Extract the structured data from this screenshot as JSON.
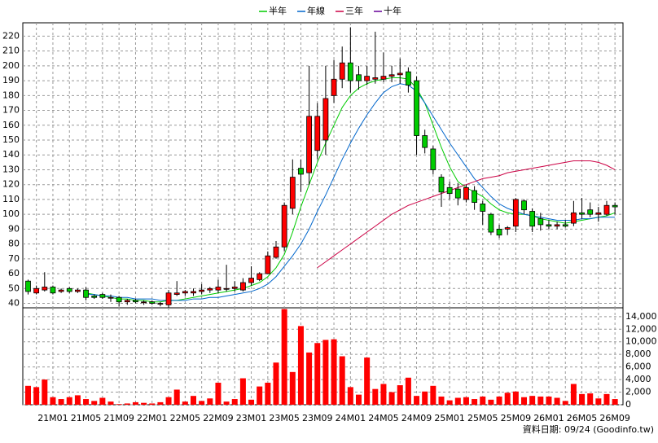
{
  "chart_data": {
    "type": "candlestick",
    "categories": [
      null,
      null,
      null,
      "21M01",
      null,
      null,
      null,
      "21M05",
      null,
      null,
      null,
      "21M09",
      null,
      null,
      null,
      "22M01",
      null,
      null,
      null,
      "22M05",
      null,
      null,
      null,
      "22M09",
      null,
      null,
      null,
      "23M01",
      null,
      null,
      null,
      "23M05",
      null,
      null,
      null,
      "23M09",
      null,
      null,
      null,
      "24M01",
      null,
      null,
      null,
      "24M05",
      null,
      null,
      null,
      "24M09",
      null,
      null,
      null,
      "25M01",
      null,
      null,
      null,
      "25M05",
      null,
      null,
      null,
      "25M09",
      null,
      null,
      null,
      "26M01",
      null,
      null,
      null,
      "26M05",
      null,
      null,
      null,
      "26M09"
    ],
    "open": [
      55,
      47,
      49,
      51,
      48,
      50,
      48,
      49,
      45,
      46,
      44,
      44,
      41,
      42,
      41,
      41,
      40,
      39,
      46,
      47,
      47,
      48,
      49,
      49,
      50,
      50,
      49,
      54,
      56,
      60,
      71,
      78,
      104,
      131,
      128,
      143,
      150,
      180,
      191,
      202,
      194,
      190,
      191,
      191,
      193,
      194,
      196,
      190,
      153,
      144,
      125,
      118,
      117,
      110,
      116,
      107,
      100,
      90,
      90,
      92,
      109,
      102,
      97,
      93,
      92,
      93,
      94,
      101,
      103,
      100,
      100,
      106
    ],
    "high": [
      56,
      52,
      61,
      52,
      50,
      51,
      50,
      51,
      46,
      47,
      46,
      45,
      43,
      43,
      42,
      42,
      41,
      49,
      55,
      49,
      50,
      53,
      51,
      56,
      66,
      55,
      57,
      65,
      61,
      75,
      82,
      108,
      137,
      137,
      200,
      175,
      200,
      204,
      213,
      226,
      200,
      200,
      223,
      209,
      200,
      205,
      199,
      193,
      157,
      146,
      127,
      122,
      121,
      120,
      119,
      109,
      101,
      93,
      92,
      111,
      110,
      104,
      101,
      96,
      95,
      96,
      109,
      111,
      108,
      105,
      109,
      108
    ],
    "low": [
      46,
      46,
      48,
      46,
      47,
      47,
      47,
      42,
      43,
      43,
      41,
      38,
      39,
      40,
      39,
      39,
      38,
      37,
      45,
      45,
      45,
      46,
      47,
      47,
      48,
      48,
      48,
      52,
      55,
      60,
      70,
      75,
      100,
      115,
      120,
      137,
      140,
      175,
      185,
      182,
      184,
      187,
      188,
      189,
      189,
      188,
      182,
      140,
      141,
      127,
      105,
      110,
      106,
      108,
      103,
      93,
      86,
      84,
      86,
      88,
      100,
      88,
      89,
      90,
      90,
      91,
      92,
      97,
      98,
      95,
      99,
      100
    ],
    "close": [
      48,
      50,
      51,
      47,
      49,
      48,
      49,
      44,
      44,
      44,
      44,
      41,
      42,
      41,
      41,
      40,
      40,
      47,
      47,
      48,
      48,
      49,
      50,
      51,
      50,
      51,
      54,
      57,
      60,
      72,
      78,
      106,
      125,
      127,
      166,
      166,
      178,
      191,
      202,
      190,
      190,
      193,
      192,
      193,
      194,
      195,
      187,
      153,
      145,
      130,
      115,
      114,
      111,
      118,
      108,
      102,
      88,
      86,
      91,
      110,
      103,
      92,
      93,
      92,
      93,
      92,
      101,
      100,
      100,
      101,
      106,
      105
    ],
    "up_color": "#ff0000",
    "down_color": "#00cc00",
    "ylim": [
      37,
      229
    ],
    "yticks": [
      40,
      50,
      60,
      70,
      80,
      90,
      100,
      110,
      120,
      130,
      140,
      150,
      160,
      170,
      180,
      190,
      200,
      210,
      220
    ],
    "grid": true,
    "series": [
      {
        "name": "半年",
        "color": "#00cc00",
        "values": [
          null,
          null,
          null,
          null,
          null,
          null,
          null,
          47,
          46,
          45,
          44,
          43,
          43,
          42,
          42,
          41,
          41,
          42,
          42,
          43,
          44,
          45,
          46,
          47,
          48,
          49,
          50,
          52,
          54,
          58,
          64,
          73,
          88,
          105,
          120,
          135,
          148,
          160,
          172,
          180,
          185,
          188,
          190,
          191,
          192,
          192,
          191,
          185,
          175,
          160,
          145,
          132,
          122,
          118,
          115,
          112,
          107,
          103,
          101,
          100,
          100,
          99,
          97,
          96,
          95,
          94,
          95,
          96,
          97,
          98,
          99,
          101
        ]
      },
      {
        "name": "年線",
        "color": "#0066cc",
        "values": [
          null,
          null,
          null,
          null,
          null,
          null,
          null,
          46,
          46,
          45,
          45,
          44,
          44,
          43,
          43,
          43,
          42,
          42,
          42,
          42,
          43,
          43,
          44,
          44,
          45,
          46,
          47,
          48,
          50,
          53,
          58,
          65,
          72,
          80,
          90,
          102,
          113,
          125,
          137,
          148,
          158,
          167,
          175,
          182,
          186,
          188,
          187,
          183,
          175,
          166,
          157,
          148,
          140,
          132,
          124,
          118,
          112,
          107,
          104,
          102,
          100,
          99,
          98,
          97,
          96,
          96,
          96,
          97,
          97,
          98,
          98,
          98
        ]
      },
      {
        "name": "三年",
        "color": "#cc0044",
        "values": [
          null,
          null,
          null,
          null,
          null,
          null,
          null,
          null,
          null,
          null,
          null,
          null,
          null,
          null,
          null,
          null,
          null,
          null,
          null,
          null,
          null,
          null,
          null,
          null,
          null,
          null,
          null,
          null,
          null,
          null,
          null,
          null,
          null,
          null,
          null,
          64,
          68,
          72,
          76,
          80,
          84,
          88,
          92,
          96,
          100,
          103,
          106,
          108,
          110,
          112,
          114,
          116,
          118,
          120,
          122,
          124,
          125,
          126,
          128,
          129,
          130,
          131,
          132,
          133,
          134,
          135,
          136,
          136,
          136,
          135,
          133,
          130
        ]
      },
      {
        "name": "十年",
        "color": "#660099",
        "values": [
          null,
          null,
          null,
          null,
          null,
          null,
          null,
          null,
          null,
          null,
          null,
          null,
          null,
          null,
          null,
          null,
          null,
          null,
          null,
          null,
          null,
          null,
          null,
          null,
          null,
          null,
          null,
          null,
          null,
          null,
          null,
          null,
          null,
          null,
          null,
          null,
          null,
          null,
          null,
          null,
          null,
          null,
          null,
          null,
          null,
          null,
          null,
          null,
          null,
          null,
          null,
          null,
          null,
          null,
          null,
          null,
          null,
          null,
          null,
          null,
          null,
          null,
          null,
          null,
          null,
          null,
          null,
          null,
          null,
          null,
          null,
          null
        ]
      }
    ],
    "volume": {
      "color": "#ff0000",
      "values": [
        3000,
        2800,
        4000,
        1200,
        900,
        1200,
        1500,
        900,
        600,
        1100,
        500,
        100,
        200,
        400,
        300,
        200,
        400,
        1200,
        2400,
        500,
        1400,
        600,
        1000,
        3500,
        500,
        900,
        4200,
        800,
        2900,
        3500,
        6700,
        15200,
        5200,
        12500,
        8300,
        9800,
        10300,
        10400,
        7700,
        2800,
        1600,
        7500,
        2500,
        3300,
        2000,
        3100,
        4300,
        1400,
        2100,
        3000,
        1300,
        700,
        1100,
        1200,
        900,
        1300,
        800,
        1300,
        1900,
        2100,
        1200,
        1400,
        1300,
        1300,
        1100,
        600,
        3300,
        1700,
        1800,
        1000,
        1700,
        900
      ],
      "ylim": [
        0,
        15400
      ],
      "yticks": [
        0,
        {
          "value": 2000,
          "label": "2,000"
        },
        {
          "value": 4000,
          "label": "4,000"
        },
        {
          "value": 6000,
          "label": "6,000"
        },
        {
          "value": 8000,
          "label": "8,000"
        },
        {
          "value": 10000,
          "label": "10,000"
        },
        {
          "value": 12000,
          "label": "12,000"
        },
        {
          "value": 14000,
          "label": "14,000"
        }
      ]
    },
    "footnote": "資料日期: 09/24  (Goodinfo.tw)"
  }
}
